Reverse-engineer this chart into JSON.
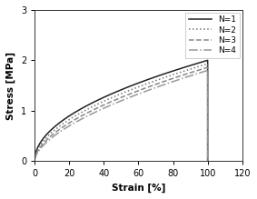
{
  "title": "",
  "xlabel": "Strain [%]",
  "ylabel": "Stress [MPa]",
  "xlim": [
    0,
    120
  ],
  "ylim": [
    0,
    3
  ],
  "xticks": [
    0,
    20,
    40,
    60,
    80,
    100,
    120
  ],
  "yticks": [
    0,
    1,
    2,
    3
  ],
  "series": [
    {
      "label": "N=1",
      "linestyle": "solid",
      "color": "#222222",
      "linewidth": 1.1,
      "strain_max": 100,
      "stress_max": 2.0,
      "shape_power": 0.5
    },
    {
      "label": "N=2",
      "linestyle": "dotted",
      "color": "#777777",
      "linewidth": 1.1,
      "strain_max": 100,
      "stress_max": 1.93,
      "shape_power": 0.53
    },
    {
      "label": "N=3",
      "linestyle": "dashed",
      "color": "#888888",
      "linewidth": 1.1,
      "strain_max": 100,
      "stress_max": 1.86,
      "shape_power": 0.56
    },
    {
      "label": "N=4",
      "linestyle": "dashdot",
      "color": "#999999",
      "linewidth": 1.1,
      "strain_max": 100,
      "stress_max": 1.8,
      "shape_power": 0.59
    }
  ],
  "background_color": "#ffffff",
  "figsize": [
    2.83,
    2.19
  ],
  "dpi": 100
}
